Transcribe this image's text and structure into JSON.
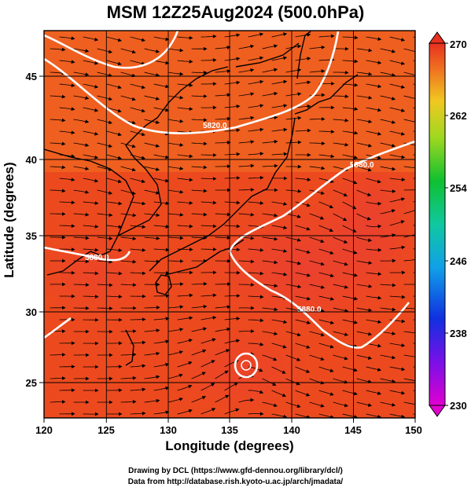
{
  "title": "MSM 12Z25Aug2024 (500.0hPa)",
  "x_axis": {
    "label": "Longitude (degrees)",
    "ticks": [
      "120",
      "125",
      "130",
      "135",
      "140",
      "145",
      "150"
    ],
    "range": [
      120,
      150
    ]
  },
  "y_axis": {
    "label": "Latitude  (degrees)",
    "ticks": [
      "25",
      "30",
      "35",
      "40",
      "45"
    ],
    "range": [
      22.4,
      47.6
    ]
  },
  "colorbar": {
    "min": 230,
    "max": 270,
    "ticks": [
      "270",
      "262",
      "254",
      "246",
      "238",
      "230"
    ]
  },
  "contour_labels": [
    "5820.0",
    "5880.0",
    "5880.0",
    "5880.0"
  ],
  "footer": {
    "line1": "Drawing by DCL (https://www.gfd-dennou.org/library/dcl/)",
    "line2": "Data from http://database.rish.kyoto-u.ac.jp/arch/jmadata/"
  },
  "colors": {
    "warm": "#e84a1c",
    "hot": "#e8322a",
    "cool": "#8fd12b",
    "contour": "#ffffff",
    "coast": "#000000"
  }
}
